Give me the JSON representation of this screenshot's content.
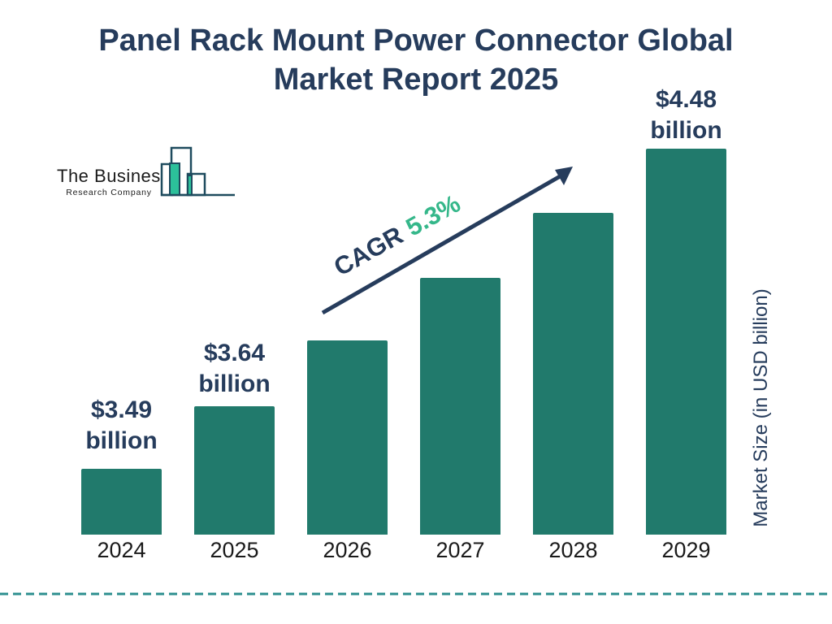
{
  "title": {
    "line1": "Panel Rack Mount Power Connector Global",
    "line2": "Market Report 2025"
  },
  "logo": {
    "name": "The Business",
    "subtitle": "Research Company"
  },
  "annotation": {
    "cagr_label": "CAGR",
    "cagr_value": "5.3%"
  },
  "axis": {
    "y_label": "Market Size (in USD billion)"
  },
  "colors": {
    "bar": "#217A6C",
    "navy": "#263C5C",
    "green": "#35B78A",
    "dash_teal": "#2D8F8F",
    "logo_green": "#2CC09A",
    "logo_outline": "#1E4B5E",
    "year_text": "#1a1a1a",
    "background": "#ffffff"
  },
  "chart_data": {
    "type": "bar",
    "title": "Panel Rack Mount Power Connector Global Market Report 2025",
    "categories": [
      "2024",
      "2025",
      "2026",
      "2027",
      "2028",
      "2029"
    ],
    "values": [
      3.49,
      3.64,
      3.83,
      4.04,
      4.25,
      4.48
    ],
    "value_labels": [
      [
        "$3.49",
        "billion"
      ],
      [
        "$3.64",
        "billion"
      ],
      null,
      null,
      null,
      [
        "$4.48",
        "billion"
      ]
    ],
    "cagr_pct": 5.3,
    "xlabel": "",
    "ylabel": "Market Size (in USD billion)",
    "unit": "USD billion",
    "legend": "none",
    "grid": "off"
  }
}
